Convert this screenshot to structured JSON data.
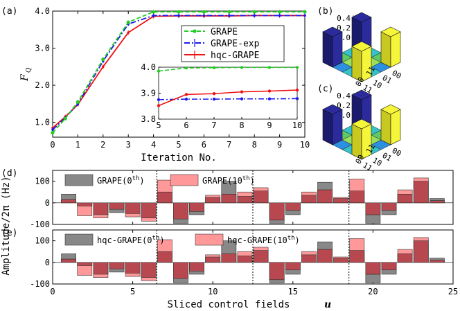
{
  "chart_data": [
    {
      "panel": "(a)",
      "type": "line",
      "xlabel": "Iteration No.",
      "ylabel": "F",
      "ylabel_sub": "Q",
      "xlim": [
        0,
        10
      ],
      "ylim": [
        0.6,
        4.0
      ],
      "xticks": [
        0,
        1,
        2,
        3,
        4,
        5,
        6,
        7,
        8,
        9,
        10
      ],
      "yticks": [
        1.0,
        2.0,
        3.0,
        4.0
      ],
      "ytick_labels": [
        "1.0",
        "2.0",
        "3.0",
        "4.0"
      ],
      "x": [
        0,
        0.5,
        1,
        2,
        3,
        4,
        5,
        6,
        7,
        8,
        9,
        10
      ],
      "series": [
        {
          "name": "GRAPE",
          "color": "#22cc22",
          "dash": "6,3",
          "marker": "circle",
          "values": [
            0.72,
            1.1,
            1.55,
            2.7,
            3.7,
            3.98,
            3.98,
            3.98,
            3.98,
            3.98,
            3.98,
            3.98
          ]
        },
        {
          "name": "GRAPE-exp",
          "color": "#1a1aee",
          "dash": "8,3,2,3",
          "marker": "errorbar",
          "values": [
            0.8,
            1.12,
            1.5,
            2.65,
            3.65,
            3.88,
            3.88,
            3.88,
            3.88,
            3.88,
            3.88,
            3.88
          ]
        },
        {
          "name": "hqc-GRAPE",
          "color": "#ee1111",
          "dash": "",
          "marker": "errorbar",
          "values": [
            0.85,
            1.15,
            1.48,
            2.5,
            3.42,
            3.86,
            3.87,
            3.87,
            3.87,
            3.88,
            3.88,
            3.88
          ]
        }
      ],
      "inset": {
        "xlim": [
          5,
          10
        ],
        "ylim": [
          3.8,
          4.0
        ],
        "xticks": [
          5,
          6,
          7,
          8,
          9,
          10
        ],
        "yticks": [
          3.8,
          3.9,
          4.0
        ],
        "ytick_labels": [
          "3.8",
          "3.9",
          "4.0"
        ],
        "x": [
          5,
          6,
          7,
          8,
          9,
          10
        ],
        "series": [
          {
            "name": "GRAPE",
            "values": [
              3.985,
              3.997,
              3.998,
              3.999,
              3.999,
              3.999
            ]
          },
          {
            "name": "GRAPE-exp",
            "values": [
              3.875,
              3.877,
              3.877,
              3.878,
              3.878,
              3.879
            ]
          },
          {
            "name": "hqc-GRAPE",
            "values": [
              3.852,
              3.895,
              3.898,
              3.905,
              3.908,
              3.912
            ]
          }
        ]
      }
    },
    {
      "panel": "(b)",
      "type": "bar3d",
      "zticks": [
        "0.4",
        "0.2",
        "0.0"
      ],
      "row_labels": [
        "00",
        "01",
        "10",
        "11"
      ],
      "col_labels": [
        "00",
        "11"
      ],
      "corner_values": {
        "00_00": 0.45,
        "00_11": 0.45,
        "11_00": 0.45,
        "11_11": 0.45
      }
    },
    {
      "panel": "(c)",
      "type": "bar3d",
      "zticks": [
        "0.4",
        "0.2",
        "0.0"
      ],
      "row_labels": [
        "00",
        "01",
        "10",
        "11"
      ],
      "col_labels": [
        "00",
        "11"
      ],
      "corner_values": {
        "00_00": 0.44,
        "00_11": 0.44,
        "11_00": 0.44,
        "11_11": 0.44
      }
    },
    {
      "panel": "(d)",
      "type": "bar",
      "xlim": [
        0,
        25
      ],
      "ylim": [
        -100,
        150
      ],
      "yticks": [
        -100,
        0,
        100
      ],
      "ytick_labels": [
        "-100",
        "0",
        "100"
      ],
      "legend": [
        "GRAPE(0",
        "GRAPE(10"
      ],
      "legend_sup": "th",
      "dividers": [
        6.5,
        12.5,
        18.5
      ],
      "x": [
        1,
        2,
        3,
        4,
        5,
        6,
        7,
        8,
        9,
        10,
        11,
        12,
        13,
        14,
        15,
        16,
        17,
        18,
        19,
        20,
        21,
        22,
        23,
        24
      ],
      "series": [
        {
          "name": "0th",
          "color": "#888888",
          "values": [
            40,
            -15,
            -55,
            -45,
            -50,
            -70,
            50,
            -95,
            -55,
            25,
            100,
            30,
            55,
            -95,
            -55,
            35,
            95,
            20,
            55,
            -95,
            -55,
            40,
            100,
            20
          ]
        },
        {
          "name": "10th",
          "color": "#ff9999",
          "values": [
            15,
            -60,
            -70,
            -30,
            -65,
            -85,
            105,
            -75,
            -40,
            35,
            40,
            50,
            70,
            -80,
            -35,
            50,
            60,
            25,
            110,
            -55,
            -35,
            60,
            115,
            10
          ]
        }
      ]
    },
    {
      "panel": "(e)",
      "type": "bar",
      "xlim": [
        0,
        25
      ],
      "ylim": [
        -100,
        150
      ],
      "yticks": [
        -100,
        0,
        100
      ],
      "ytick_labels": [
        "-100",
        "0",
        "100"
      ],
      "xticks": [
        0,
        5,
        10,
        15,
        20,
        25
      ],
      "xlabel": "Sliced control fields",
      "xlabel_var": "u",
      "ylabel_shared": "Amplitude/2π (Hz)",
      "legend": [
        "hqc-GRAPE(0",
        "hqc-GRAPE(10"
      ],
      "legend_sup": "th",
      "dividers": [
        6.5,
        12.5,
        18.5
      ],
      "x": [
        1,
        2,
        3,
        4,
        5,
        6,
        7,
        8,
        9,
        10,
        11,
        12,
        13,
        14,
        15,
        16,
        17,
        18,
        19,
        20,
        21,
        22,
        23,
        24
      ],
      "series": [
        {
          "name": "0th",
          "color": "#888888",
          "values": [
            40,
            -15,
            -55,
            -45,
            -50,
            -70,
            50,
            -95,
            -55,
            25,
            100,
            30,
            55,
            -95,
            -55,
            35,
            95,
            20,
            55,
            -95,
            -55,
            40,
            100,
            20
          ]
        },
        {
          "name": "10th",
          "color": "#ff9999",
          "values": [
            15,
            -60,
            -70,
            -30,
            -65,
            -85,
            105,
            -75,
            -40,
            35,
            40,
            50,
            70,
            -80,
            -35,
            50,
            60,
            25,
            110,
            -55,
            -35,
            60,
            115,
            10
          ]
        }
      ]
    }
  ]
}
